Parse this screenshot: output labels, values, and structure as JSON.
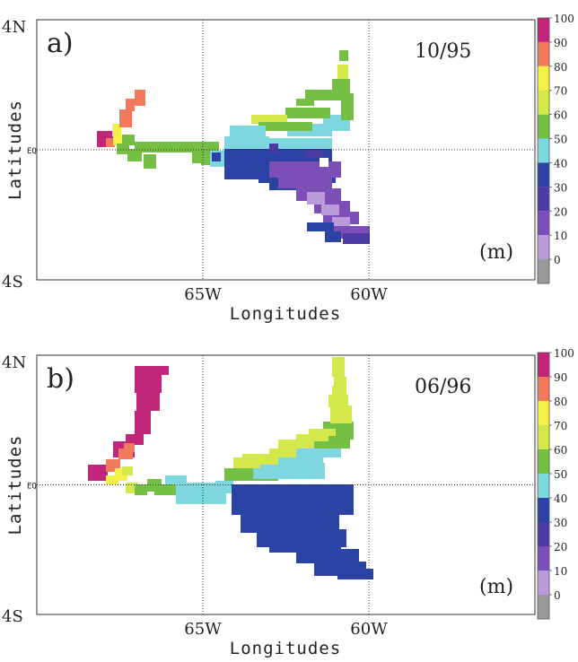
{
  "panels": [
    {
      "label": "a)",
      "date": "10/95",
      "x_ticks": [
        "65W",
        "60W"
      ],
      "y_ticks": [
        "4N",
        "EQ",
        "4S"
      ],
      "xlabel": "Longitudes",
      "ylabel": "Latitudes",
      "unit": "(m)",
      "runs": [
        [
          -3.6,
          -3.4,
          1,
          "#2a43a4"
        ],
        [
          -3.5,
          -3.1,
          1,
          "#2a43a4"
        ],
        [
          -3.5,
          -3.3,
          1,
          "#7b4fb6"
        ],
        [
          -3.3,
          -2.9,
          1,
          "#2a43a4"
        ],
        [
          -3.3,
          -3.1,
          1,
          "#7b4fb6"
        ],
        [
          -3.1,
          -2.7,
          1,
          "#2a43a4"
        ],
        [
          -3.1,
          -2.9,
          1,
          "#7b4fb6"
        ],
        [
          -3.2,
          -2.8,
          3,
          "#2a43a4"
        ],
        [
          -3.1,
          -2.5,
          3,
          "#7b4fb6"
        ],
        [
          -2.9,
          -2.3,
          3,
          "#7b4fb6"
        ],
        [
          -2.7,
          -2.1,
          3,
          "#9b88d1"
        ],
        [
          -2.5,
          -1.9,
          3,
          "#7b4fb6"
        ],
        [
          -3.3,
          -2.6,
          4,
          "#7b4fb6"
        ],
        [
          -3.0,
          -2.4,
          4,
          "#9b88d1"
        ],
        [
          -2.6,
          -2.0,
          4,
          "#7b4fb6"
        ],
        [
          -3.0,
          -2.2,
          6,
          "#2a43a4"
        ],
        [
          -2.6,
          -1.8,
          6,
          "#7b4fb6"
        ],
        [
          -2.2,
          -1.2,
          6,
          "#7b4fb6"
        ],
        [
          -1.6,
          -0.9,
          6,
          "#2a43a4"
        ],
        [
          -1.4,
          -0.6,
          7,
          "#2a43a4"
        ],
        [
          -1.2,
          -0.2,
          7,
          "#7b4fb6"
        ],
        [
          -0.8,
          0,
          7,
          "#2a43a4"
        ],
        [
          -0.8,
          -0.4,
          8,
          "#7ed6de"
        ],
        [
          -0.6,
          0,
          8,
          "#7ed6de"
        ],
        [
          -0.4,
          0,
          8,
          "#2a43a4"
        ],
        [
          -0.2,
          0,
          8,
          "#2a43a4"
        ],
        [
          -0.3,
          0.1,
          8,
          "#7ed6de"
        ],
        [
          0,
          0.4,
          8,
          "#7ed6de"
        ],
        [
          0.2,
          0.6,
          8,
          "#7ed6de"
        ],
        [
          0.4,
          0.8,
          8,
          "#7ed6de"
        ],
        [
          0.6,
          1.2,
          8,
          "#7ed6de"
        ],
        [
          0.8,
          1.2,
          7,
          "#75bf44"
        ],
        [
          1.0,
          1.6,
          7,
          "#75bf44"
        ],
        [
          1.2,
          2.0,
          7,
          "#75bf44"
        ],
        [
          1.6,
          2.2,
          6,
          "#75bf44"
        ],
        [
          1.9,
          2.5,
          6,
          "#75bf44"
        ],
        [
          2.3,
          2.7,
          6,
          "#75bf44"
        ],
        [
          0.6,
          1.0,
          6,
          "#d5e84b"
        ],
        [
          0.8,
          1.2,
          6,
          "#d5e84b"
        ],
        [
          1.2,
          1.6,
          5,
          "#d5e84b"
        ],
        [
          1.6,
          2.0,
          5,
          "#d5e84b"
        ],
        [
          2.0,
          2.4,
          5,
          "#d5e84b"
        ],
        [
          2.3,
          2.7,
          5,
          "#d5e84b"
        ],
        [
          0,
          0.6,
          11,
          "#75bf44"
        ],
        [
          -0.2,
          0.4,
          12,
          "#75bf44"
        ],
        [
          -0.4,
          0.1,
          13,
          "#75bf44"
        ],
        [
          -0.5,
          0,
          14,
          "#75bf44"
        ],
        [
          -0.7,
          -0.2,
          15,
          "#75bf44"
        ],
        [
          0,
          0.4,
          16,
          "#d5e84b"
        ],
        [
          0.1,
          0.7,
          16,
          "#f3f04a"
        ],
        [
          0.2,
          0.8,
          16,
          "#f3f04a"
        ],
        [
          0.4,
          1.3,
          17,
          "#f07a5b"
        ],
        [
          0.6,
          1.3,
          17,
          "#f07a5b"
        ],
        [
          0.8,
          1.4,
          17,
          "#f07a5b"
        ],
        [
          1.0,
          1.5,
          17,
          "#f07a5b"
        ],
        [
          1.2,
          1.6,
          17,
          "#f07a5b"
        ],
        [
          1.3,
          1.6,
          17,
          "#f07a5b"
        ],
        [
          0.1,
          0.5,
          18,
          "#e2337f"
        ],
        [
          0,
          0.3,
          19,
          "#c0267a"
        ]
      ],
      "note": ""
    },
    {
      "label": "b)",
      "date": "06/96",
      "x_ticks": [
        "65W",
        "60W"
      ],
      "y_ticks": [
        "4N",
        "EQ",
        "4S"
      ],
      "xlabel": "Longitudes",
      "ylabel": "Latitudes",
      "unit": "(m)",
      "runs": [],
      "note": ""
    }
  ],
  "colorbar": {
    "ticks": [
      "100",
      "90",
      "80",
      "70",
      "60",
      "50",
      "40",
      "30",
      "20",
      "10",
      "0"
    ],
    "colors": [
      "#c0267a",
      "#f07a5b",
      "#f3f04a",
      "#d5e84b",
      "#75bf44",
      "#7ed6de",
      "#2a43a4",
      "#4b3ba3",
      "#7b4fb6",
      "#b89bd8",
      "#999999"
    ]
  }
}
